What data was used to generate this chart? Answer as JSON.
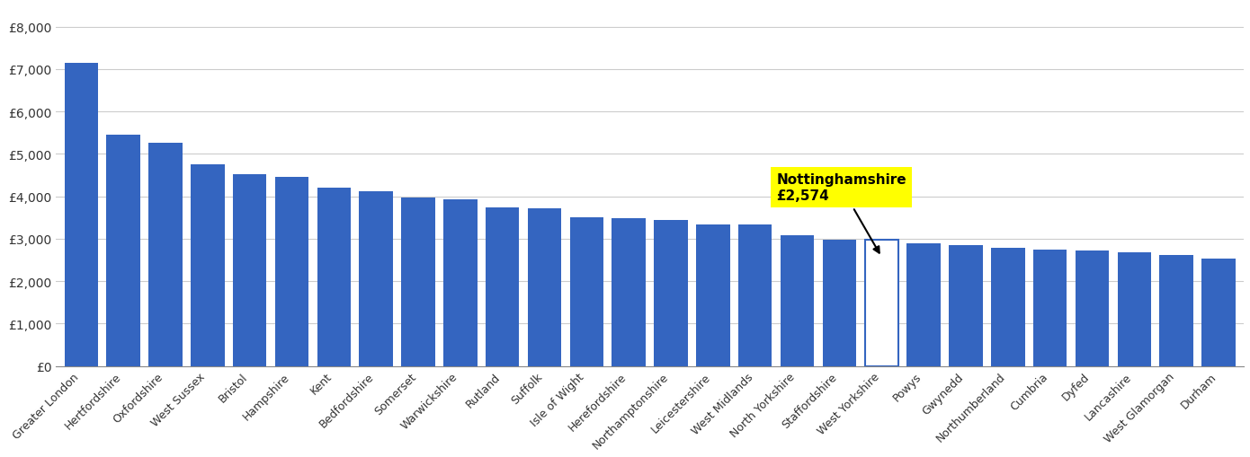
{
  "categories": [
    "Greater London",
    "Hertfordshire",
    "Oxfordshire",
    "West Sussex",
    "Bristol",
    "Hampshire",
    "Kent",
    "Bedfordshire",
    "Somerset",
    "Warwickshire",
    "Rutland",
    "Suffolk",
    "Isle of Wight",
    "Herefordshire",
    "Northamptonshire",
    "Leicestershire",
    "West Midlands",
    "North Yorkshire",
    "Staffordshire",
    "West Yorkshire",
    "Powys",
    "Gwynedd",
    "Northumberland",
    "Cumbria",
    "Dyfed",
    "Lancashire",
    "West Glamorgan",
    "Durham"
  ],
  "values": [
    7150,
    5450,
    5270,
    4760,
    4520,
    4460,
    4200,
    4120,
    3970,
    3930,
    3730,
    3720,
    3500,
    3480,
    3450,
    3340,
    3330,
    3090,
    2980,
    2970,
    2900,
    2840,
    2780,
    2750,
    2730,
    2680,
    2610,
    2540
  ],
  "nottinghamshire_value": 2574,
  "nottinghamshire_label": "West Yorkshire",
  "nottinghamshire_index": 19,
  "bar_color": "#3465C0",
  "annotation_bg": "#FFFF00",
  "annotation_text": "Nottinghamshire\n£2,574",
  "ylim": [
    0,
    8500
  ],
  "yticks": [
    0,
    1000,
    2000,
    3000,
    4000,
    5000,
    6000,
    7000,
    8000
  ],
  "ytick_labels": [
    "£0",
    "£1,000",
    "£2,000",
    "£3,000",
    "£4,000",
    "£5,000",
    "£6,000",
    "£7,000",
    "£8,000"
  ],
  "background_color": "#FFFFFF",
  "grid_color": "#CCCCCC"
}
